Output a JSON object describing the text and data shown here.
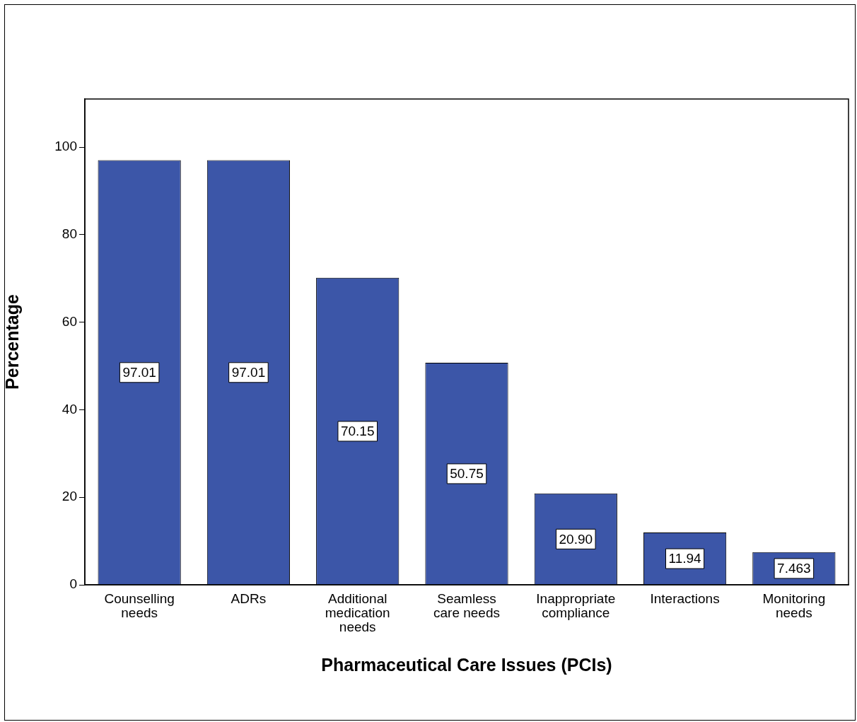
{
  "chart_data": {
    "type": "bar",
    "xlabel": "Pharmaceutical Care Issues (PCIs)",
    "ylabel": "Percentage",
    "categories": [
      "Counselling\nneeds",
      "ADRs",
      "Additional\nmedication\nneeds",
      "Seamless\ncare needs",
      "Inappropriate\ncompliance",
      "Interactions",
      "Monitoring\nneeds"
    ],
    "values": [
      97.01,
      97.01,
      70.15,
      50.75,
      20.9,
      11.94,
      7.463
    ],
    "value_labels": [
      "97.01",
      "97.01",
      "70.15",
      "50.75",
      "20.90",
      "11.94",
      "7.463"
    ],
    "color": "#3c56a8",
    "ylim": [
      0,
      111
    ],
    "yticks": [
      0,
      20,
      40,
      60,
      80,
      100
    ],
    "grid": false,
    "legend": false
  }
}
